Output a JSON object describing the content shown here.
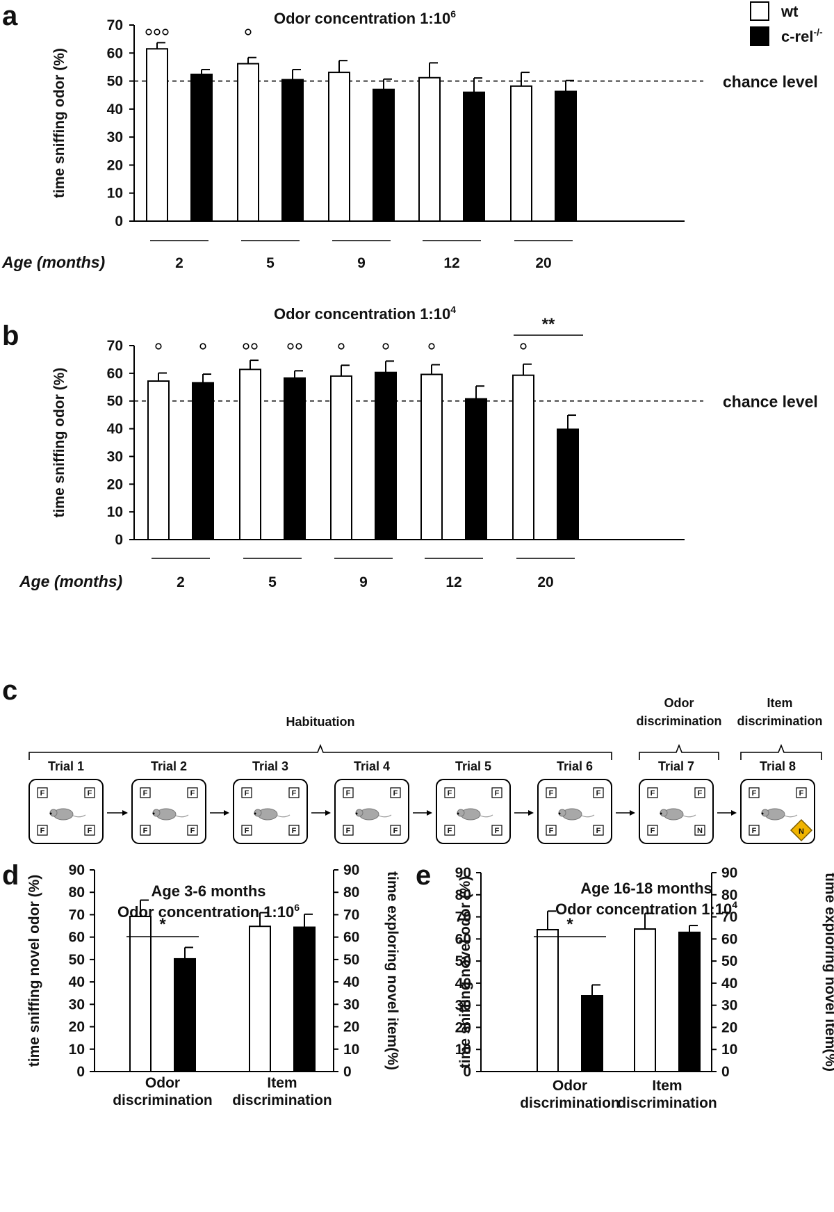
{
  "legend": [
    {
      "label": "wt",
      "color": "#ffffff"
    },
    {
      "label": "c-rel",
      "sup": "-/-",
      "color": "#000000"
    }
  ],
  "panel_labels": {
    "a": "a",
    "b": "b",
    "c": "c",
    "d": "d",
    "e": "e"
  },
  "age_label": "Age (months)",
  "chance_label": "chance level",
  "colors": {
    "wt": "#ffffff",
    "crel": "#000000",
    "stroke": "#000000",
    "novel_item": "#f0b400"
  },
  "chart_data": [
    {
      "id": "a",
      "type": "bar",
      "title": "Odor concentration 1:10",
      "title_sup": "6",
      "xlabel": "Age (months)",
      "ylabel": "time sniffing odor (%)",
      "ylim": [
        0,
        70
      ],
      "yticks": [
        0,
        10,
        20,
        30,
        40,
        50,
        60,
        70
      ],
      "categories": [
        "2",
        "5",
        "9",
        "12",
        "20"
      ],
      "chance_level": 50,
      "series": [
        {
          "name": "wt",
          "values": [
            61.5,
            56.2,
            53.1,
            51.2,
            48.2
          ],
          "errors": [
            2.2,
            2.2,
            4.2,
            5.3,
            4.9
          ]
        },
        {
          "name": "c-rel-/-",
          "values": [
            52.4,
            50.5,
            47.0,
            46.0,
            46.3
          ],
          "errors": [
            1.7,
            3.6,
            3.7,
            5.1,
            3.9
          ]
        }
      ],
      "annotations": [
        {
          "category": "2",
          "series": "wt",
          "text": "°°°"
        },
        {
          "category": "5",
          "series": "wt",
          "text": "°"
        }
      ]
    },
    {
      "id": "b",
      "type": "bar",
      "title": "Odor concentration 1:10",
      "title_sup": "4",
      "xlabel": "Age (months)",
      "ylabel": "time sniffing odor (%)",
      "ylim": [
        0,
        70
      ],
      "yticks": [
        0,
        10,
        20,
        30,
        40,
        50,
        60,
        70
      ],
      "categories": [
        "2",
        "5",
        "9",
        "12",
        "20"
      ],
      "chance_level": 50,
      "series": [
        {
          "name": "wt",
          "values": [
            57.2,
            61.4,
            59.0,
            59.6,
            59.3
          ],
          "errors": [
            2.9,
            3.3,
            3.9,
            3.5,
            4.0
          ]
        },
        {
          "name": "c-rel-/-",
          "values": [
            56.6,
            58.3,
            60.3,
            50.8,
            39.8
          ],
          "errors": [
            3.1,
            2.6,
            4.1,
            4.6,
            5.1
          ]
        }
      ],
      "annotations": [
        {
          "category": "2",
          "series": "wt",
          "text": "°"
        },
        {
          "category": "2",
          "series": "c-rel-/-",
          "text": "°"
        },
        {
          "category": "5",
          "series": "wt",
          "text": "°°"
        },
        {
          "category": "5",
          "series": "c-rel-/-",
          "text": "°°"
        },
        {
          "category": "9",
          "series": "wt",
          "text": "°"
        },
        {
          "category": "9",
          "series": "c-rel-/-",
          "text": "°"
        },
        {
          "category": "12",
          "series": "wt",
          "text": "°"
        },
        {
          "category": "20",
          "series": "wt",
          "text": "°"
        }
      ],
      "significance": [
        {
          "category": "20",
          "text": "**"
        }
      ]
    },
    {
      "id": "d",
      "type": "bar",
      "title_lines": [
        "Age 3-6 months",
        "Odor concentration 1:10"
      ],
      "title_sup": "6",
      "ylabel": "time sniffing novel odor (%)",
      "ylabel_right": "time exploring novel item(%)",
      "ylim": [
        0,
        90
      ],
      "yticks": [
        0,
        10,
        20,
        30,
        40,
        50,
        60,
        70,
        80,
        90
      ],
      "categories": [
        [
          "Odor",
          "discrimination"
        ],
        [
          "Item",
          "discrimination"
        ]
      ],
      "series": [
        {
          "name": "wt",
          "values": [
            69.2,
            64.8
          ],
          "errors": [
            7.3,
            6.1
          ]
        },
        {
          "name": "c-rel-/-",
          "values": [
            50.3,
            64.4
          ],
          "errors": [
            5.1,
            5.8
          ]
        }
      ],
      "significance": [
        {
          "category": "Odor discrimination",
          "text": "*"
        }
      ]
    },
    {
      "id": "e",
      "type": "bar",
      "title_lines": [
        "Age 16-18 months",
        "Odor concentration 1:10"
      ],
      "title_sup": "4",
      "ylabel": "time sniffing novel odor (%)",
      "ylabel_right": "time exploring novel item(%)",
      "ylim": [
        0,
        90
      ],
      "yticks": [
        0,
        10,
        20,
        30,
        40,
        50,
        60,
        70,
        80,
        90
      ],
      "categories": [
        [
          "Odor",
          "discrimination"
        ],
        [
          "Item",
          "discrimination"
        ]
      ],
      "series": [
        {
          "name": "wt",
          "values": [
            64.2,
            64.5
          ],
          "errors": [
            8.4,
            7.1
          ]
        },
        {
          "name": "c-rel-/-",
          "values": [
            34.3,
            63.0
          ],
          "errors": [
            4.9,
            3.1
          ]
        }
      ],
      "significance": [
        {
          "category": "Odor discrimination",
          "text": "*"
        }
      ]
    }
  ],
  "schematic": {
    "groups": [
      {
        "lines": [
          "Habituation"
        ]
      },
      {
        "lines": [
          "Odor",
          "discrimination"
        ]
      },
      {
        "lines": [
          "Item",
          "discrimination"
        ]
      }
    ],
    "trials": [
      {
        "label": "Trial 1",
        "corners": [
          "F",
          "F",
          "F",
          "F"
        ]
      },
      {
        "label": "Trial 2",
        "corners": [
          "F",
          "F",
          "F",
          "F"
        ]
      },
      {
        "label": "Trial 3",
        "corners": [
          "F",
          "F",
          "F",
          "F"
        ]
      },
      {
        "label": "Trial 4",
        "corners": [
          "F",
          "F",
          "F",
          "F"
        ]
      },
      {
        "label": "Trial 5",
        "corners": [
          "F",
          "F",
          "F",
          "F"
        ]
      },
      {
        "label": "Trial 6",
        "corners": [
          "F",
          "F",
          "F",
          "F"
        ]
      },
      {
        "label": "Trial 7",
        "corners": [
          "F",
          "F",
          "F",
          "N"
        ]
      },
      {
        "label": "Trial 8",
        "corners": [
          "F",
          "N",
          "F",
          "F"
        ],
        "novel_item": "N"
      }
    ]
  }
}
